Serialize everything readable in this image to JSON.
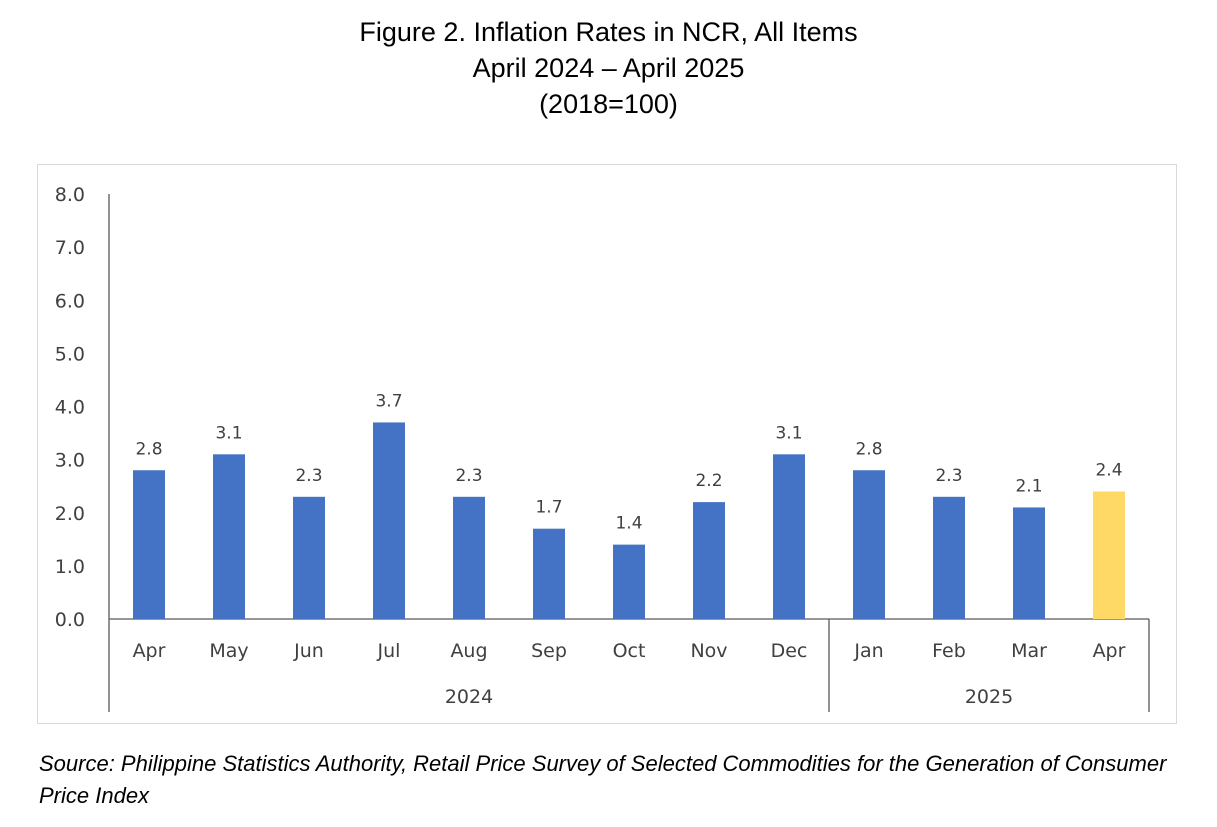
{
  "title": {
    "line1": "Figure 2. Inflation Rates in NCR, All Items",
    "line2": "April 2024 – April 2025",
    "line3": "(2018=100)"
  },
  "source": "Source: Philippine Statistics Authority, Retail Price Survey of Selected Commodities for the Generation of Consumer Price Index",
  "chart_data": {
    "type": "bar",
    "title": "Figure 2. Inflation Rates in NCR, All Items",
    "subtitle": "April 2024 – April 2025 (2018=100)",
    "xlabel": "",
    "ylabel": "",
    "ylim": [
      0,
      8
    ],
    "y_ticks": [
      "0.0",
      "1.0",
      "2.0",
      "3.0",
      "4.0",
      "5.0",
      "6.0",
      "7.0",
      "8.0"
    ],
    "categories": [
      "Apr",
      "May",
      "Jun",
      "Jul",
      "Aug",
      "Sep",
      "Oct",
      "Nov",
      "Dec",
      "Jan",
      "Feb",
      "Mar",
      "Apr"
    ],
    "values": [
      2.8,
      3.1,
      2.3,
      3.7,
      2.3,
      1.7,
      1.4,
      2.2,
      3.1,
      2.8,
      2.3,
      2.1,
      2.4
    ],
    "data_labels": [
      "2.8",
      "3.1",
      "2.3",
      "3.7",
      "2.3",
      "1.7",
      "1.4",
      "2.2",
      "3.1",
      "2.8",
      "2.3",
      "2.1",
      "2.4"
    ],
    "year_groups": [
      {
        "label": "2024",
        "count": 9
      },
      {
        "label": "2025",
        "count": 4
      }
    ],
    "highlight_index": 12,
    "colors": {
      "bar": "#4472c4",
      "highlight": "#ffd966",
      "axis": "#595959",
      "text": "#404040"
    },
    "grid": false,
    "legend": "none"
  }
}
